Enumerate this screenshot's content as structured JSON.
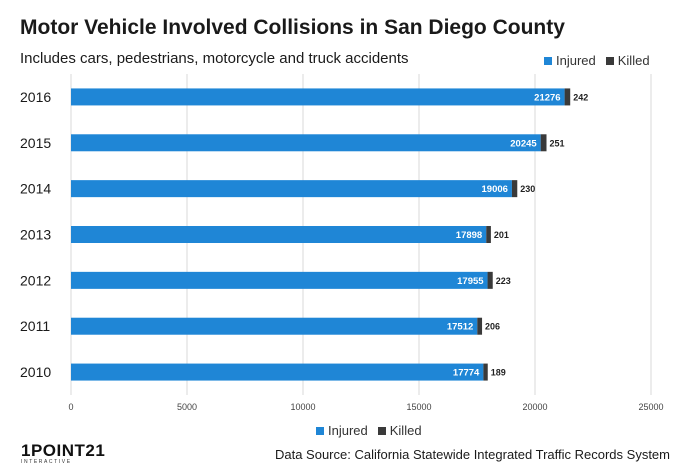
{
  "chart_data": {
    "type": "bar",
    "orientation": "horizontal",
    "stacked": true,
    "title": "Motor Vehicle Involved Collisions in San Diego County",
    "subtitle": "Includes cars, pedestrians, motorcycle and truck accidents",
    "categories": [
      "2016",
      "2015",
      "2014",
      "2013",
      "2012",
      "2011",
      "2010"
    ],
    "series": [
      {
        "name": "Injured",
        "color": "#1f86d6",
        "values": [
          21276,
          20245,
          19006,
          17898,
          17955,
          17512,
          17774
        ]
      },
      {
        "name": "Killed",
        "color": "#3a3a3a",
        "values": [
          242,
          251,
          230,
          201,
          223,
          206,
          189
        ]
      }
    ],
    "xlim": [
      0,
      25000
    ],
    "xticks": [
      "0",
      "5000",
      "10000",
      "15000",
      "20000",
      "25000"
    ],
    "grid": "vertical",
    "legend_positions": [
      "top-right",
      "bottom-center"
    ],
    "source": "Data Source: California Statewide Integrated Traffic Records System"
  },
  "logo": {
    "text": "1POINT21",
    "subtext": "INTERACTIVE"
  }
}
